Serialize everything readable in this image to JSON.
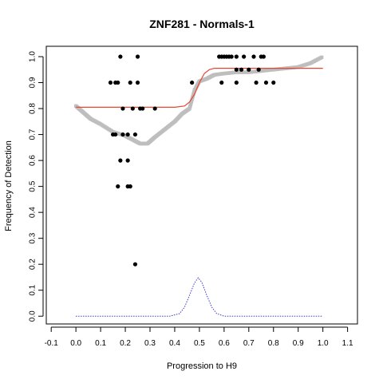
{
  "chart_data": {
    "type": "scatter",
    "title": "ZNF281 - Normals-1",
    "xlabel": "Progression to H9",
    "ylabel": "Frequency of Detection",
    "xlim": [
      -0.12,
      1.14
    ],
    "ylim": [
      -0.03,
      1.04
    ],
    "xticks": [
      -0.1,
      0.0,
      0.1,
      0.2,
      0.3,
      0.4,
      0.5,
      0.6,
      0.7,
      0.8,
      0.9,
      1.0,
      1.1
    ],
    "xtick_labels": [
      "-0.1",
      "0.0",
      "0.1",
      "0.2",
      "0.3",
      "0.4",
      "0.5",
      "0.6",
      "0.7",
      "0.8",
      "0.9",
      "1.0",
      "1.1"
    ],
    "yticks": [
      0.0,
      0.1,
      0.2,
      0.3,
      0.4,
      0.5,
      0.6,
      0.7,
      0.8,
      0.9,
      1.0
    ],
    "ytick_labels": [
      "0.0",
      "0.1",
      "0.2",
      "0.3",
      "0.4",
      "0.5",
      "0.6",
      "0.7",
      "0.8",
      "0.9",
      "1.0"
    ],
    "grid": false,
    "legend": "none",
    "colors": {
      "points": "#000000",
      "smooth": "#bebebe",
      "sigmoid_fit": "#e8452f",
      "density": "#3b3bd8",
      "axis": "#000000"
    },
    "series": [
      {
        "kind": "points",
        "values": [
          [
            0.14,
            0.9
          ],
          [
            0.17,
            0.9
          ],
          [
            0.16,
            0.9
          ],
          [
            0.22,
            0.9
          ],
          [
            0.25,
            0.9
          ],
          [
            0.18,
            1.0
          ],
          [
            0.25,
            1.0
          ],
          [
            0.19,
            0.8
          ],
          [
            0.23,
            0.8
          ],
          [
            0.26,
            0.8
          ],
          [
            0.27,
            0.8
          ],
          [
            0.32,
            0.8
          ],
          [
            0.15,
            0.7
          ],
          [
            0.16,
            0.7
          ],
          [
            0.19,
            0.7
          ],
          [
            0.21,
            0.7
          ],
          [
            0.24,
            0.7
          ],
          [
            0.18,
            0.6
          ],
          [
            0.21,
            0.6
          ],
          [
            0.17,
            0.5
          ],
          [
            0.21,
            0.5
          ],
          [
            0.22,
            0.5
          ],
          [
            0.24,
            0.2
          ],
          [
            0.47,
            0.9
          ],
          [
            0.59,
            0.9
          ],
          [
            0.65,
            0.9
          ],
          [
            0.73,
            0.9
          ],
          [
            0.77,
            0.9
          ],
          [
            0.8,
            0.9
          ],
          [
            0.58,
            1.0
          ],
          [
            0.59,
            1.0
          ],
          [
            0.6,
            1.0
          ],
          [
            0.61,
            1.0
          ],
          [
            0.62,
            1.0
          ],
          [
            0.63,
            1.0
          ],
          [
            0.65,
            1.0
          ],
          [
            0.68,
            1.0
          ],
          [
            0.72,
            1.0
          ],
          [
            0.75,
            1.0
          ],
          [
            0.76,
            1.0
          ],
          [
            0.65,
            0.95
          ],
          [
            0.67,
            0.95
          ],
          [
            0.7,
            0.95
          ],
          [
            0.74,
            0.95
          ]
        ]
      },
      {
        "kind": "smooth",
        "values": [
          [
            0.0,
            0.81
          ],
          [
            0.03,
            0.785
          ],
          [
            0.06,
            0.76
          ],
          [
            0.1,
            0.74
          ],
          [
            0.15,
            0.71
          ],
          [
            0.2,
            0.695
          ],
          [
            0.23,
            0.68
          ],
          [
            0.26,
            0.665
          ],
          [
            0.29,
            0.665
          ],
          [
            0.32,
            0.69
          ],
          [
            0.36,
            0.72
          ],
          [
            0.4,
            0.75
          ],
          [
            0.43,
            0.78
          ],
          [
            0.46,
            0.8
          ],
          [
            0.48,
            0.87
          ],
          [
            0.5,
            0.905
          ],
          [
            0.53,
            0.915
          ],
          [
            0.56,
            0.93
          ],
          [
            0.6,
            0.935
          ],
          [
            0.65,
            0.94
          ],
          [
            0.7,
            0.94
          ],
          [
            0.75,
            0.945
          ],
          [
            0.8,
            0.95
          ],
          [
            0.85,
            0.955
          ],
          [
            0.9,
            0.96
          ],
          [
            0.95,
            0.975
          ],
          [
            1.0,
            1.0
          ]
        ]
      },
      {
        "kind": "sigmoid_fit",
        "values": [
          [
            0.0,
            0.805
          ],
          [
            0.1,
            0.805
          ],
          [
            0.2,
            0.805
          ],
          [
            0.3,
            0.805
          ],
          [
            0.4,
            0.805
          ],
          [
            0.44,
            0.81
          ],
          [
            0.46,
            0.825
          ],
          [
            0.48,
            0.855
          ],
          [
            0.5,
            0.9
          ],
          [
            0.52,
            0.935
          ],
          [
            0.54,
            0.95
          ],
          [
            0.56,
            0.955
          ],
          [
            0.6,
            0.955
          ],
          [
            0.7,
            0.955
          ],
          [
            0.8,
            0.955
          ],
          [
            0.9,
            0.955
          ],
          [
            1.0,
            0.955
          ]
        ]
      },
      {
        "kind": "density",
        "values": [
          [
            0.0,
            0.0
          ],
          [
            0.1,
            0.0
          ],
          [
            0.2,
            0.0
          ],
          [
            0.3,
            0.0
          ],
          [
            0.38,
            0.0
          ],
          [
            0.42,
            0.01
          ],
          [
            0.44,
            0.035
          ],
          [
            0.46,
            0.08
          ],
          [
            0.48,
            0.128
          ],
          [
            0.495,
            0.148
          ],
          [
            0.51,
            0.13
          ],
          [
            0.53,
            0.08
          ],
          [
            0.55,
            0.035
          ],
          [
            0.57,
            0.01
          ],
          [
            0.6,
            0.0
          ],
          [
            0.7,
            0.0
          ],
          [
            0.8,
            0.0
          ],
          [
            0.9,
            0.0
          ],
          [
            1.0,
            0.0
          ]
        ]
      }
    ]
  }
}
